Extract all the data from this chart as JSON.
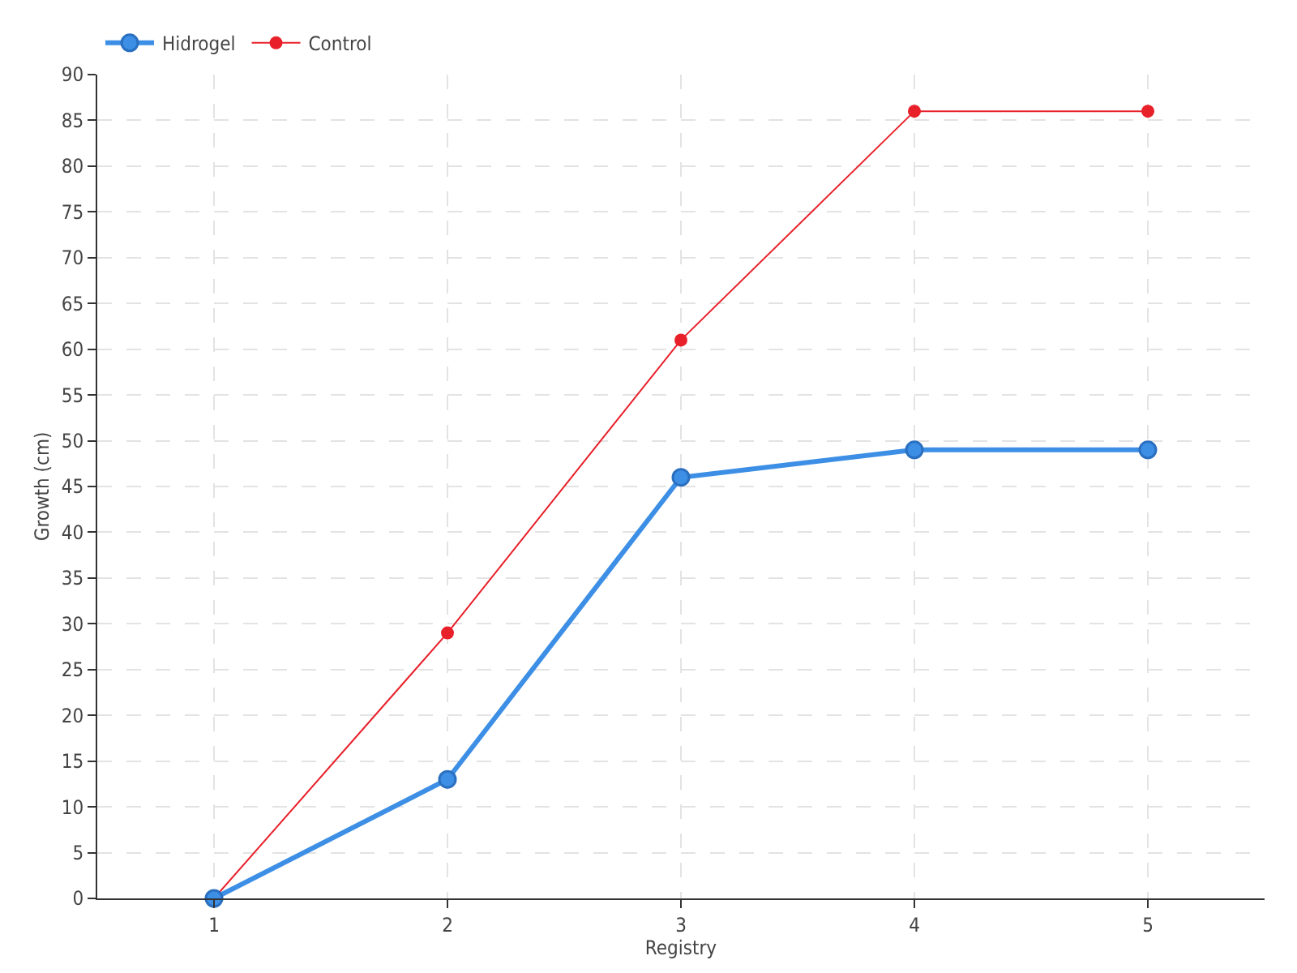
{
  "chart_data": {
    "type": "line",
    "xlabel": "Registry",
    "ylabel": "Growth (cm)",
    "x": [
      1,
      2,
      3,
      4,
      5
    ],
    "series": [
      {
        "name": "Hidrogel",
        "color": "#3d8fe6",
        "values": [
          0,
          13,
          46,
          49,
          49
        ]
      },
      {
        "name": "Control",
        "color": "#e8202a",
        "values": [
          0,
          29,
          61,
          86,
          86
        ]
      }
    ],
    "xlim": [
      0.5,
      5.5
    ],
    "xticks": [
      1,
      2,
      3,
      4,
      5
    ],
    "ylim": [
      0,
      90
    ],
    "yticks": [
      0,
      5,
      10,
      15,
      20,
      25,
      30,
      35,
      40,
      45,
      50,
      55,
      60,
      65,
      70,
      75,
      80,
      85,
      90
    ],
    "grid": true,
    "legend": "top left",
    "marker": "circle",
    "line_style": "solid"
  }
}
